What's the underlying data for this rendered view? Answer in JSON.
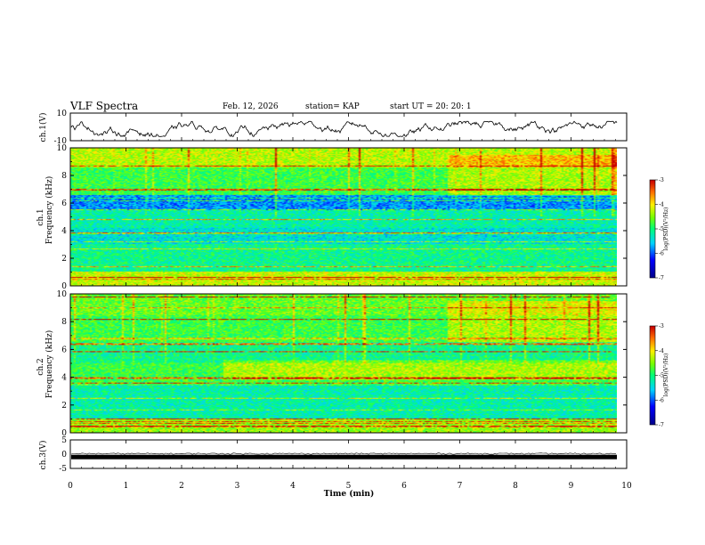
{
  "header": {
    "title": "VLF Spectra",
    "date": "Feb. 12, 2026",
    "station": "station= KAP",
    "start": "start  UT  =   20: 20: 1"
  },
  "chart_data": [
    {
      "type": "line",
      "name": "ch1-waveform",
      "ylabel": "ch.1(V)",
      "ylim": [
        -10,
        10
      ],
      "y_ticks": [
        "10",
        "-10"
      ],
      "xlim": [
        0,
        10
      ],
      "approx_range": [
        -7,
        4
      ]
    },
    {
      "type": "heatmap",
      "name": "ch1-spectrogram",
      "ylabel_top": "ch.1",
      "ylabel": "Frequency  (kHz)",
      "ylim": [
        0,
        10
      ],
      "y_ticks": [
        "0",
        "2",
        "4",
        "6",
        "8",
        "10"
      ],
      "xlim": [
        0,
        9.85
      ],
      "colorbar": {
        "label": "log(PSD)(V²/Hz)",
        "range": [
          -7,
          -3
        ],
        "ticks": [
          "-3",
          "-4",
          "-5",
          "-6",
          "-7"
        ]
      }
    },
    {
      "type": "heatmap",
      "name": "ch2-spectrogram",
      "ylabel_top": "ch.2",
      "ylabel": "Frequency  (kHz)",
      "ylim": [
        0,
        10
      ],
      "y_ticks": [
        "0",
        "2",
        "4",
        "6",
        "8",
        "10"
      ],
      "xlim": [
        0,
        9.85
      ],
      "colorbar": {
        "label": "log(PSD)(V²/Hz)",
        "range": [
          -7,
          -3
        ],
        "ticks": [
          "-3",
          "-4",
          "-5",
          "-6",
          "-7"
        ]
      }
    },
    {
      "type": "line",
      "name": "ch3-waveform",
      "ylabel": "ch.3(V)",
      "ylim": [
        -5,
        5
      ],
      "y_ticks": [
        "5",
        "0",
        "-5"
      ],
      "xlim": [
        0,
        10
      ],
      "approx_value": -1
    }
  ],
  "x_axis": {
    "label": "Time  (min)",
    "ticks": [
      "0",
      "1",
      "2",
      "3",
      "4",
      "5",
      "6",
      "7",
      "8",
      "9",
      "10"
    ],
    "range": [
      0,
      10
    ]
  },
  "colors": {
    "frame": "#000000",
    "background": "#ffffff"
  }
}
